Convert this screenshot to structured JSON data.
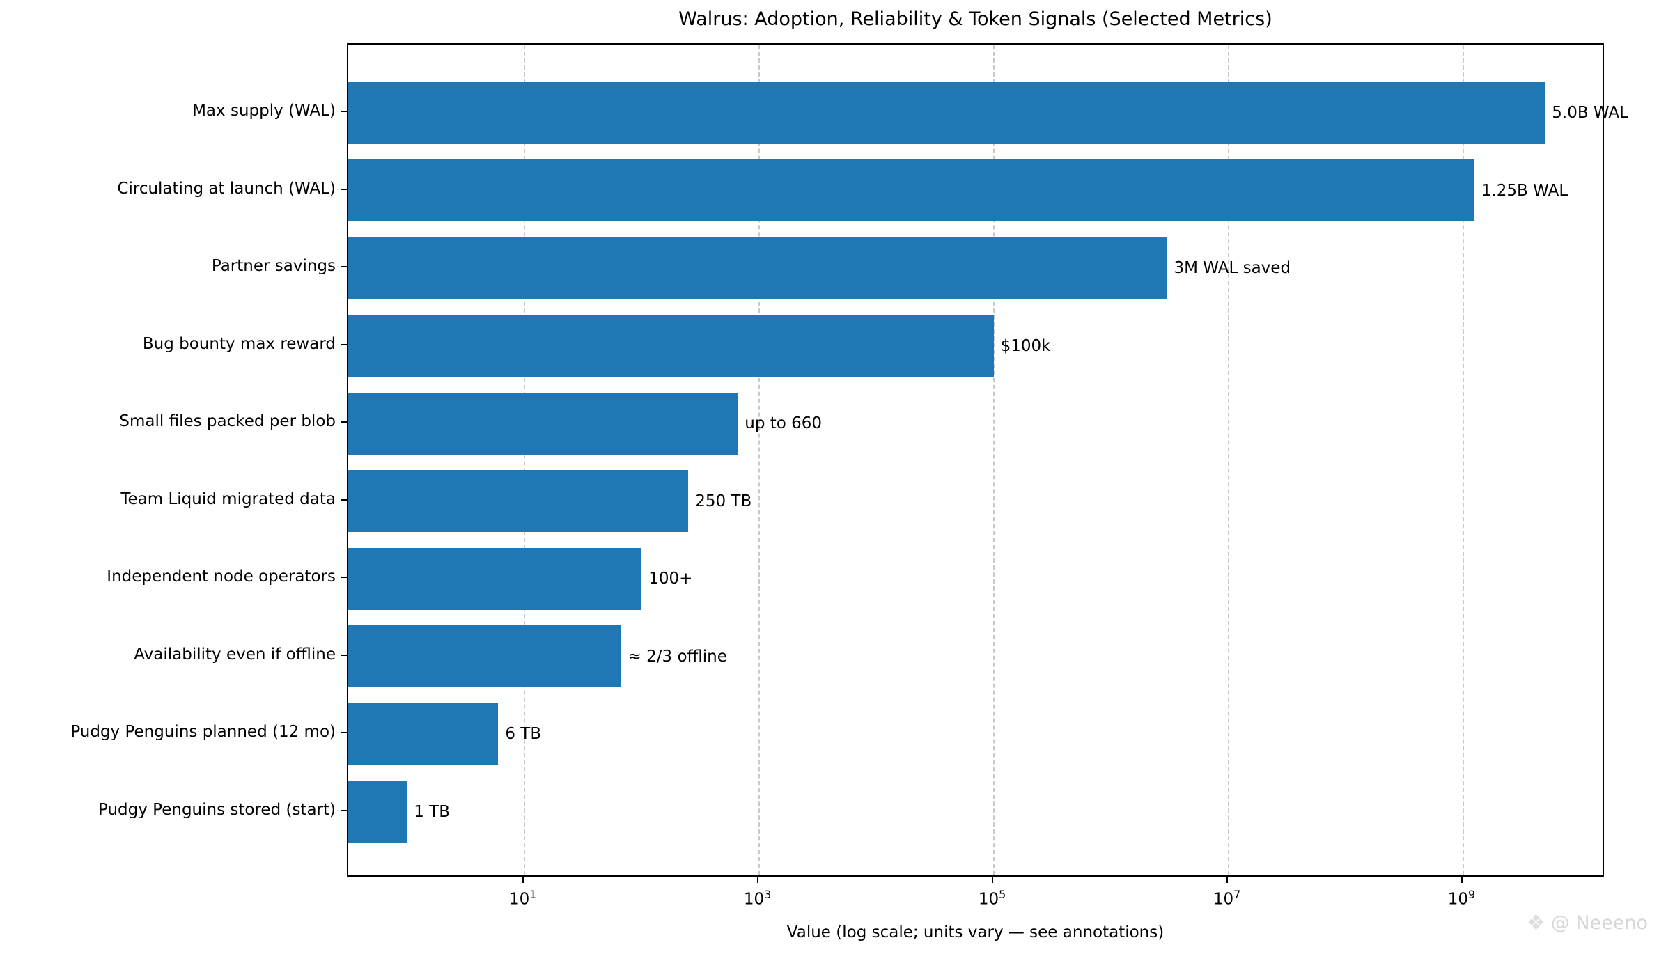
{
  "watermark": {
    "icon": "❖",
    "text": "@ Neeeno"
  },
  "chart_data": {
    "type": "bar",
    "orientation": "horizontal",
    "title": "Walrus: Adoption, Reliability & Token Signals (Selected Metrics)",
    "xlabel": "Value (log scale; units vary — see annotations)",
    "ylabel": "",
    "x_scale": "log",
    "xlim_log10": [
      -0.5,
      10.19
    ],
    "x_tick_exponents": [
      1,
      3,
      5,
      7,
      9
    ],
    "x_tick_labels": [
      "10¹",
      "10³",
      "10⁵",
      "10⁷",
      "10⁹"
    ],
    "grid": "vertical-dashed-major-only",
    "legend": "none",
    "bar_color": "#1f77b4",
    "categories": [
      "Max supply (WAL)",
      "Circulating at launch (WAL)",
      "Partner savings",
      "Bug bounty max reward",
      "Small files packed per blob",
      "Team Liquid migrated data",
      "Independent node operators",
      "Availability even if offline",
      "Pudgy Penguins planned (12 mo)",
      "Pudgy Penguins stored (start)"
    ],
    "values": [
      5000000000,
      1250000000,
      3000000,
      100000,
      660,
      250,
      100,
      66.7,
      6,
      1
    ],
    "annotations": [
      "5.0B WAL",
      "1.25B WAL",
      "3M WAL saved",
      "$100k",
      "up to 660",
      "250 TB",
      "100+",
      "≈ 2/3 offline",
      "6 TB",
      "1 TB"
    ]
  }
}
